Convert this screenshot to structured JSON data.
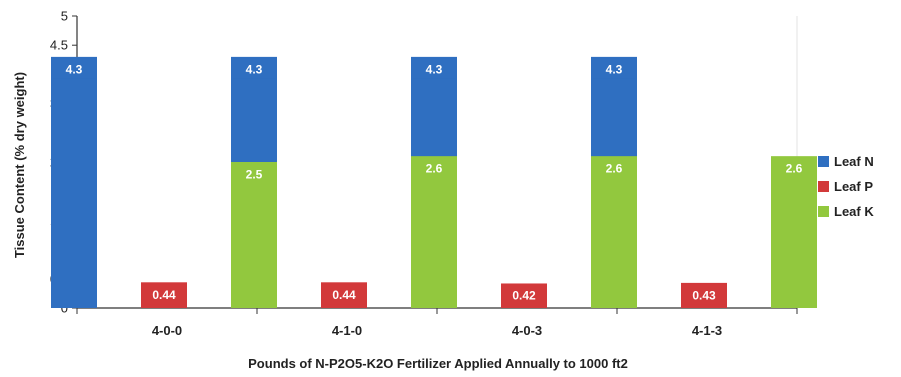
{
  "chart_data": {
    "type": "bar",
    "title": "",
    "xlabel": "Pounds of N-P2O5-K2O Fertilizer Applied Annually to 1000 ft2",
    "ylabel": "Tissue Content (% dry weight)",
    "ylim": [
      0,
      5
    ],
    "yticks": [
      "0",
      "0.5",
      "1",
      "1.5",
      "2",
      "2.5",
      "3",
      "3.5",
      "4",
      "4.5",
      "5"
    ],
    "categories": [
      "4-0-0",
      "4-1-0",
      "4-0-3",
      "4-1-3"
    ],
    "series": [
      {
        "name": "Leaf N",
        "color": "#2f6fc1",
        "values": [
          4.3,
          4.3,
          4.3,
          4.3
        ],
        "labels": [
          "4.3",
          "4.3",
          "4.3",
          "4.3"
        ]
      },
      {
        "name": "Leaf P",
        "color": "#d2393a",
        "values": [
          0.44,
          0.44,
          0.42,
          0.43
        ],
        "labels": [
          "0.44",
          "0.44",
          "0.42",
          "0.43"
        ]
      },
      {
        "name": "Leaf K",
        "color": "#92c83e",
        "values": [
          2.5,
          2.6,
          2.6,
          2.6
        ],
        "labels": [
          "2.5",
          "2.6",
          "2.6",
          "2.6"
        ]
      }
    ],
    "grid": false,
    "legend": "right"
  }
}
